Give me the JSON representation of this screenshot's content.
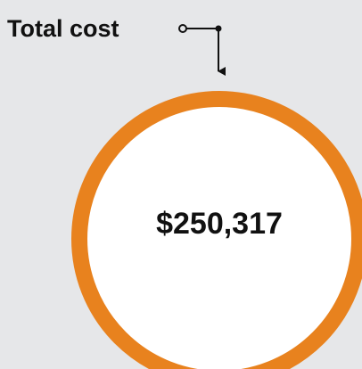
{
  "label": "Total cost",
  "value": "$250,317"
}
